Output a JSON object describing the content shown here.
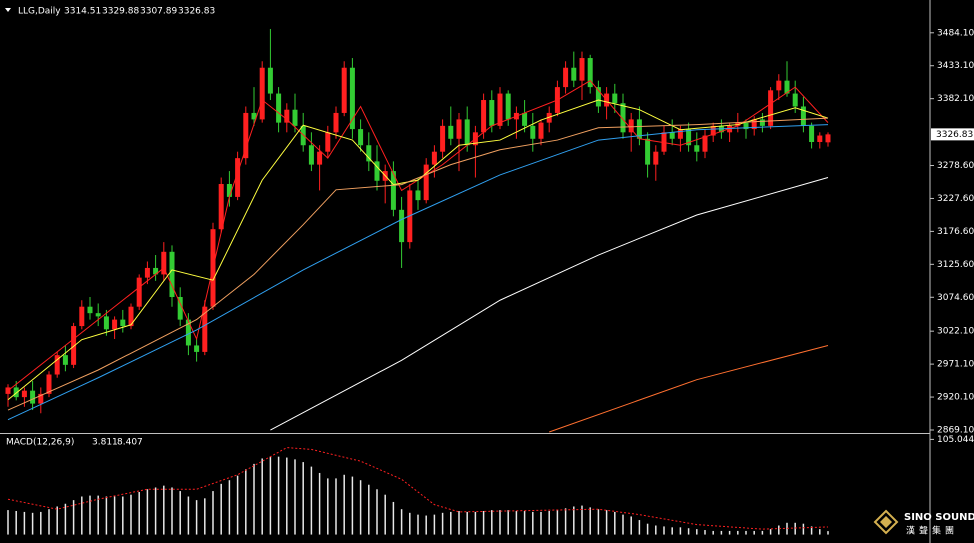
{
  "chart_data": {
    "type": "candlestick",
    "title": "LLG,Daily",
    "up_color": "#ff2020",
    "down_color": "#33cc33",
    "ylim": [
      2866,
      3507
    ],
    "yticks": [
      {
        "value": 3484.1,
        "label": "3484.10"
      },
      {
        "value": 3433.1,
        "label": "3433.10"
      },
      {
        "value": 3382.1,
        "label": "3382.10"
      },
      {
        "value": 3278.6,
        "label": "3278.60"
      },
      {
        "value": 3227.6,
        "label": "3227.60"
      },
      {
        "value": 3176.6,
        "label": "3176.60"
      },
      {
        "value": 3125.6,
        "label": "3125.60"
      },
      {
        "value": 3074.6,
        "label": "3074.60"
      },
      {
        "value": 3022.1,
        "label": "3022.10"
      },
      {
        "value": 2971.1,
        "label": "2971.10"
      },
      {
        "value": 2920.1,
        "label": "2920.10"
      },
      {
        "value": 2869.1,
        "label": "2869.10"
      }
    ],
    "open": [
      2925,
      2935,
      2920,
      2930,
      2910,
      2925,
      2955,
      2985,
      2970,
      3030,
      3060,
      3050,
      3045,
      3025,
      3040,
      3030,
      3060,
      3105,
      3120,
      3110,
      3145,
      3075,
      3040,
      3000,
      2990,
      3060,
      3180,
      3250,
      3230,
      3290,
      3360,
      3350,
      3430,
      3390,
      3345,
      3365,
      3340,
      3310,
      3280,
      3300,
      3330,
      3360,
      3430,
      3335,
      3310,
      3285,
      3255,
      3270,
      3210,
      3160,
      3240,
      3225,
      3280,
      3300,
      3340,
      3320,
      3350,
      3310,
      3330,
      3380,
      3340,
      3390,
      3350,
      3360,
      3340,
      3320,
      3345,
      3360,
      3400,
      3430,
      3410,
      3445,
      3400,
      3370,
      3390,
      3375,
      3330,
      3350,
      3320,
      3280,
      3300,
      3330,
      3320,
      3335,
      3310,
      3300,
      3325,
      3340,
      3330,
      3340,
      3345,
      3335,
      3350,
      3340,
      3395,
      3410,
      3390,
      3370,
      3340,
      3315,
      3314.51
    ],
    "high": [
      2940,
      2945,
      2935,
      2945,
      2935,
      2960,
      2990,
      3000,
      3035,
      3070,
      3075,
      3065,
      3055,
      3045,
      3055,
      3065,
      3110,
      3130,
      3140,
      3160,
      3155,
      3090,
      3050,
      3010,
      3070,
      3190,
      3260,
      3270,
      3300,
      3370,
      3400,
      3440,
      3490,
      3400,
      3375,
      3390,
      3360,
      3330,
      3310,
      3340,
      3370,
      3440,
      3445,
      3350,
      3330,
      3310,
      3280,
      3285,
      3230,
      3250,
      3260,
      3290,
      3310,
      3350,
      3370,
      3360,
      3370,
      3340,
      3390,
      3395,
      3400,
      3395,
      3370,
      3380,
      3360,
      3350,
      3370,
      3410,
      3440,
      3455,
      3455,
      3450,
      3410,
      3400,
      3405,
      3390,
      3360,
      3370,
      3330,
      3310,
      3340,
      3350,
      3340,
      3345,
      3330,
      3335,
      3345,
      3350,
      3345,
      3360,
      3350,
      3355,
      3360,
      3400,
      3420,
      3440,
      3410,
      3385,
      3345,
      3330,
      3329.88
    ],
    "low": [
      2905,
      2915,
      2905,
      2900,
      2895,
      2920,
      2950,
      2960,
      2965,
      3025,
      3040,
      3030,
      3015,
      3010,
      3020,
      3025,
      3055,
      3095,
      3100,
      3100,
      3060,
      3030,
      2985,
      2975,
      2985,
      3055,
      3175,
      3215,
      3225,
      3280,
      3340,
      3345,
      3380,
      3330,
      3330,
      3330,
      3300,
      3270,
      3240,
      3290,
      3320,
      3355,
      3320,
      3300,
      3270,
      3240,
      3220,
      3200,
      3120,
      3150,
      3210,
      3220,
      3260,
      3290,
      3310,
      3270,
      3300,
      3260,
      3320,
      3330,
      3335,
      3340,
      3320,
      3330,
      3300,
      3310,
      3330,
      3355,
      3390,
      3400,
      3380,
      3390,
      3360,
      3350,
      3360,
      3320,
      3300,
      3310,
      3260,
      3255,
      3295,
      3310,
      3300,
      3300,
      3285,
      3290,
      3315,
      3320,
      3315,
      3330,
      3320,
      3325,
      3330,
      3335,
      3380,
      3385,
      3360,
      3330,
      3305,
      3305,
      3307.89
    ],
    "close": [
      2935,
      2920,
      2930,
      2910,
      2925,
      2955,
      2985,
      2970,
      3030,
      3060,
      3050,
      3045,
      3025,
      3040,
      3030,
      3060,
      3105,
      3120,
      3110,
      3145,
      3075,
      3040,
      3000,
      2990,
      3060,
      3180,
      3250,
      3230,
      3290,
      3360,
      3350,
      3430,
      3390,
      3345,
      3365,
      3340,
      3310,
      3280,
      3300,
      3330,
      3360,
      3430,
      3335,
      3310,
      3285,
      3255,
      3270,
      3210,
      3160,
      3240,
      3225,
      3280,
      3300,
      3340,
      3320,
      3350,
      3310,
      3330,
      3380,
      3340,
      3390,
      3350,
      3360,
      3340,
      3320,
      3345,
      3360,
      3400,
      3430,
      3410,
      3445,
      3400,
      3370,
      3390,
      3375,
      3330,
      3350,
      3320,
      3280,
      3300,
      3330,
      3320,
      3335,
      3310,
      3300,
      3325,
      3340,
      3330,
      3340,
      3345,
      3335,
      3350,
      3340,
      3395,
      3410,
      3390,
      3370,
      3340,
      3315,
      3325,
      3326.83
    ],
    "lines": [
      {
        "color": "#ff2020",
        "x": [
          0,
          6,
          11,
          19,
          23,
          27,
          31,
          34,
          39,
          43,
          48,
          53,
          59,
          67,
          71,
          77,
          82,
          89,
          96,
          100
        ],
        "values": [
          2930,
          2990,
          3040,
          3120,
          3010,
          3230,
          3380,
          3350,
          3290,
          3370,
          3240,
          3280,
          3340,
          3380,
          3410,
          3320,
          3310,
          3340,
          3400,
          3345
        ]
      },
      {
        "color": "#ffff40",
        "x": [
          0,
          9,
          15,
          20,
          25,
          31,
          36,
          42,
          47,
          50,
          55,
          60,
          65,
          72,
          77,
          82,
          89,
          96,
          100
        ],
        "values": [
          2916,
          3009,
          3032,
          3117,
          3101,
          3256,
          3341,
          3318,
          3249,
          3256,
          3310,
          3318,
          3349,
          3380,
          3365,
          3334,
          3342,
          3368,
          3352
        ]
      },
      {
        "color": "#f0a060",
        "x": [
          0,
          11,
          23,
          30,
          36,
          40,
          48,
          54,
          60,
          67,
          72,
          84,
          100
        ],
        "values": [
          2900,
          2962,
          3040,
          3110,
          3187,
          3241,
          3249,
          3280,
          3303,
          3318,
          3337,
          3342,
          3352
        ]
      },
      {
        "color": "#30a0f0",
        "x": [
          0,
          11,
          23,
          36,
          48,
          60,
          72,
          84,
          100
        ],
        "values": [
          2885,
          2950,
          3024,
          3117,
          3195,
          3264,
          3318,
          3334,
          3342
        ]
      },
      {
        "color": "#ffffff",
        "x": [
          32,
          48,
          60,
          72,
          84,
          100
        ],
        "values": [
          2869,
          2977,
          3070,
          3140,
          3202,
          3260
        ]
      },
      {
        "color": "#ff7030",
        "x": [
          66,
          84,
          100
        ],
        "values": [
          2866,
          2947,
          3000
        ]
      }
    ],
    "macd": {
      "name": "MACD(12,26,9)",
      "ylim": [
        -6,
        111
      ],
      "yticks": [
        105.044
      ],
      "hist_color": "#e8e8e8",
      "signal_color": "#ff2020",
      "histogram": [
        27,
        26,
        25,
        24,
        25,
        28,
        31,
        34,
        38,
        42,
        43,
        43,
        42,
        42,
        42,
        44,
        47,
        50,
        52,
        54,
        52,
        48,
        42,
        38,
        40,
        48,
        56,
        60,
        65,
        72,
        78,
        84,
        86,
        86,
        85,
        83,
        80,
        75,
        68,
        62,
        62,
        66,
        64,
        60,
        55,
        50,
        44,
        36,
        28,
        24,
        22,
        21,
        22,
        24,
        25,
        26,
        25,
        25,
        26,
        27,
        27,
        27,
        26,
        26,
        25,
        25,
        26,
        27,
        29,
        31,
        32,
        30,
        28,
        27,
        25,
        22,
        20,
        16,
        12,
        10,
        9,
        8,
        8,
        7,
        6,
        5,
        4,
        4,
        4,
        4,
        4,
        4,
        4,
        6,
        10,
        13,
        13,
        12,
        9,
        6,
        3.811
      ],
      "signal_x": [
        0,
        6,
        11,
        17,
        23,
        28,
        34,
        37,
        43,
        48,
        52,
        55,
        72,
        77,
        84,
        92,
        100
      ],
      "signal": [
        39,
        28,
        39,
        50,
        50,
        66,
        96,
        94,
        81,
        61,
        33,
        25,
        28,
        22,
        11,
        6,
        8.407
      ]
    },
    "watermark": {
      "brand": "SINO SOUND",
      "sub": "漢聲集團"
    }
  }
}
